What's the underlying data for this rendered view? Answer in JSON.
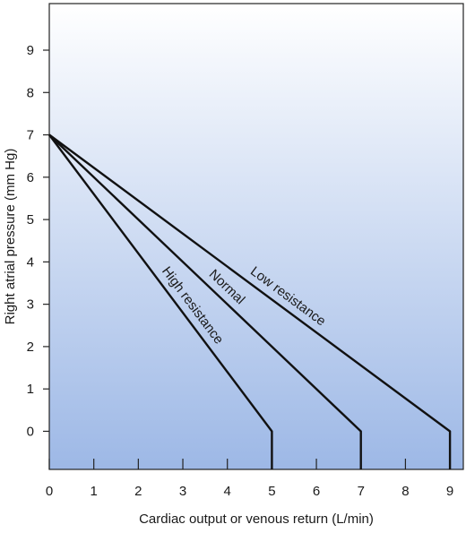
{
  "chart_data": {
    "type": "line",
    "title": "",
    "xlabel": "Cardiac output or venous return (L/min)",
    "ylabel": "Right atrial pressure (mm Hg)",
    "xlim": [
      0,
      9.3
    ],
    "ylim": [
      -0.9,
      10.1
    ],
    "x_ticks": [
      0,
      1,
      2,
      3,
      4,
      5,
      6,
      7,
      8,
      9
    ],
    "y_ticks": [
      0,
      1,
      2,
      3,
      4,
      5,
      6,
      7,
      8,
      9
    ],
    "grid": false,
    "legend": "none",
    "background_gradient": [
      "#ffffff",
      "#9db8e6"
    ],
    "line_color": "#111111",
    "series": [
      {
        "name": "High resistance",
        "points": [
          [
            0,
            7
          ],
          [
            5,
            0
          ],
          [
            5,
            -0.9
          ]
        ],
        "label_at_x": 3.0
      },
      {
        "name": "Normal",
        "points": [
          [
            0,
            7
          ],
          [
            7,
            0
          ],
          [
            7,
            -0.9
          ]
        ],
        "label_at_x": 3.8
      },
      {
        "name": "Low resistance",
        "points": [
          [
            0,
            7
          ],
          [
            9,
            0
          ],
          [
            9,
            -0.9
          ]
        ],
        "label_at_x": 5.2
      }
    ]
  }
}
